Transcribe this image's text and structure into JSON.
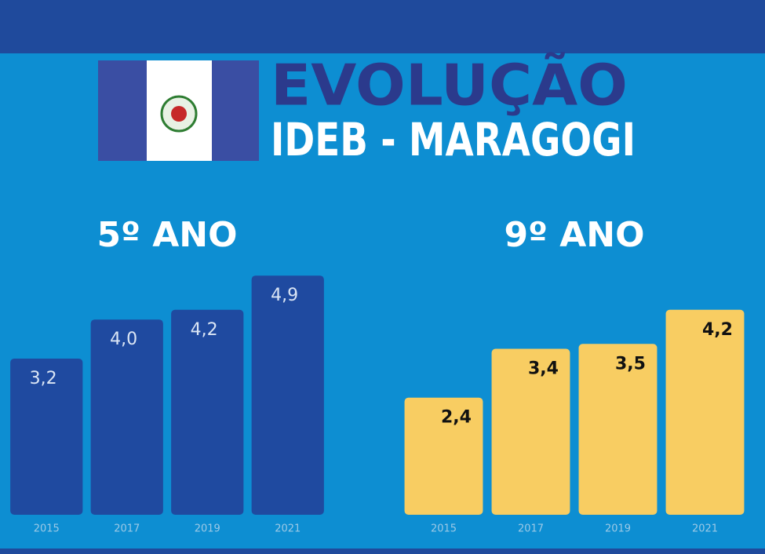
{
  "header": {
    "title": "EVOLUÇÃO",
    "subtitle": "IDEB - MARAGOGI"
  },
  "chart_data": [
    {
      "type": "bar",
      "title": "5º ANO",
      "categories": [
        "2015",
        "2017",
        "2019",
        "2021"
      ],
      "values": [
        3.2,
        4.0,
        4.2,
        4.9
      ],
      "value_labels": [
        "3,2",
        "4,0",
        "4,2",
        "4,9"
      ],
      "color": "#1f4aa0",
      "label_color": "#dbe6f5",
      "ylim": [
        0,
        5
      ]
    },
    {
      "type": "bar",
      "title": "9º ANO",
      "categories": [
        "2015",
        "2017",
        "2019",
        "2021"
      ],
      "values": [
        2.4,
        3.4,
        3.5,
        4.2
      ],
      "value_labels": [
        "2,4",
        "3,4",
        "3,5",
        "4,2"
      ],
      "color": "#f8cd62",
      "label_color": "#111111",
      "ylim": [
        0,
        5
      ]
    }
  ]
}
